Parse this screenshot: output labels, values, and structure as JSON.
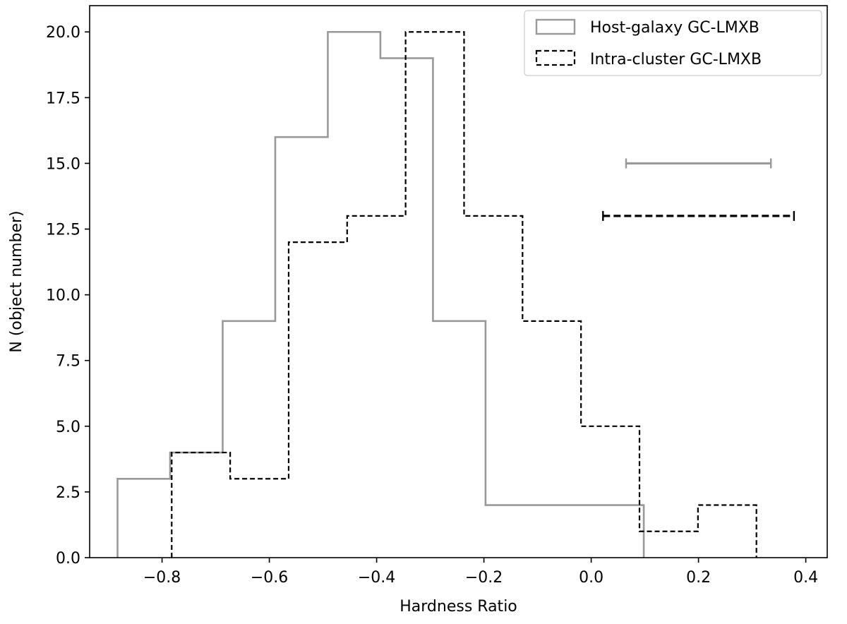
{
  "chart_data": {
    "type": "histogram-step",
    "xlabel": "Hardness Ratio",
    "ylabel": "N (object number)",
    "xlim": [
      -0.935,
      0.44
    ],
    "ylim": [
      0,
      21
    ],
    "x_ticks": [
      -0.8,
      -0.6,
      -0.4,
      -0.2,
      0.0,
      0.2,
      0.4
    ],
    "x_tick_labels": [
      "−0.8",
      "−0.6",
      "−0.4",
      "−0.2",
      "0.0",
      "0.2",
      "0.4"
    ],
    "y_ticks": [
      0,
      2.5,
      5,
      7.5,
      10,
      12.5,
      15,
      17.5,
      20
    ],
    "y_tick_labels": [
      "0.0",
      "2.5",
      "5.0",
      "7.5",
      "10.0",
      "12.5",
      "15.0",
      "17.5",
      "20.0"
    ],
    "grid": false,
    "legend_position": "top-right",
    "series": [
      {
        "name": "Host-galaxy GC-LMXB",
        "style": "solid",
        "color": "#999999",
        "bin_edges": [
          -0.883,
          -0.785,
          -0.687,
          -0.589,
          -0.491,
          -0.393,
          -0.295,
          -0.197,
          -0.099,
          0.0,
          0.098
        ],
        "counts": [
          3,
          4,
          9,
          16,
          20,
          19,
          9,
          2,
          2,
          2
        ]
      },
      {
        "name": "Intra-cluster GC-LMXB",
        "style": "dashed",
        "color": "#000000",
        "bin_edges": [
          -0.782,
          -0.673,
          -0.564,
          -0.455,
          -0.346,
          -0.237,
          -0.128,
          -0.019,
          0.09,
          0.199,
          0.308
        ],
        "counts": [
          4,
          3,
          12,
          13,
          20,
          13,
          9,
          5,
          1,
          2
        ]
      }
    ],
    "error_bars": [
      {
        "series": "Host-galaxy GC-LMXB",
        "y": 15,
        "x_low": 0.065,
        "x_high": 0.335,
        "style": "solid",
        "color": "#999999"
      },
      {
        "series": "Intra-cluster GC-LMXB",
        "y": 13,
        "x_low": 0.022,
        "x_high": 0.378,
        "style": "dashed",
        "color": "#000000"
      }
    ]
  }
}
